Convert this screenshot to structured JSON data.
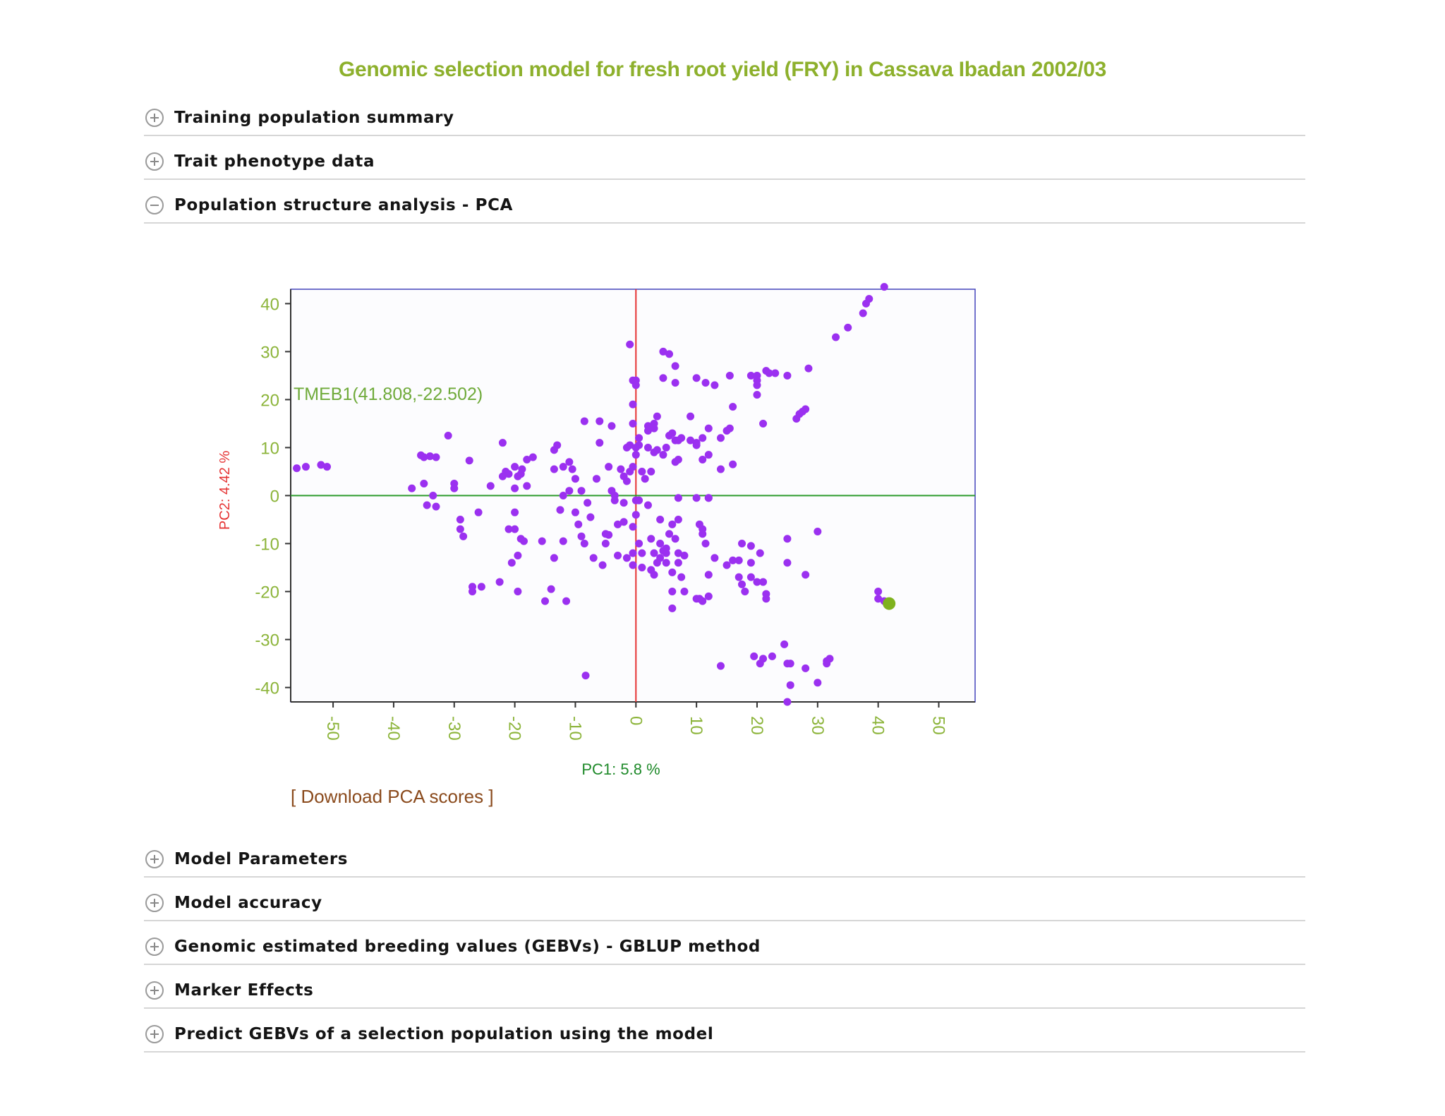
{
  "page": {
    "title": "Genomic selection model for fresh root yield (FRY) in Cassava Ibadan 2002/03"
  },
  "sections_top": [
    {
      "label": "Training population summary",
      "state": "collapsed"
    },
    {
      "label": "Trait phenotype data",
      "state": "collapsed"
    },
    {
      "label": "Population structure analysis - PCA",
      "state": "expanded"
    }
  ],
  "sections_bottom": [
    {
      "label": "Model Parameters",
      "state": "collapsed"
    },
    {
      "label": "Model accuracy",
      "state": "collapsed"
    },
    {
      "label": "Genomic estimated breeding values (GEBVs) - GBLUP method",
      "state": "collapsed"
    },
    {
      "label": "Marker Effects",
      "state": "collapsed"
    },
    {
      "label": "Predict GEBVs of a selection population using the model",
      "state": "collapsed"
    }
  ],
  "download_link": "[ Download PCA scores ]",
  "colors": {
    "title": "#8db02c",
    "point": "#9b30f0",
    "highlight_point": "#7fb21e",
    "zero_x_line": "#e53333",
    "zero_y_line": "#2a9a2a",
    "frame": "#4444bb"
  },
  "chart_data": {
    "type": "scatter",
    "xlabel": "PC1: 5.8 %",
    "ylabel": "PC2: 4.42 %",
    "xlim": [
      -57,
      56
    ],
    "ylim": [
      -43,
      43
    ],
    "xticks": [
      -50,
      -40,
      -30,
      -20,
      -10,
      0,
      10,
      20,
      30,
      40,
      50
    ],
    "yticks": [
      40,
      30,
      20,
      10,
      0,
      -10,
      -20,
      -30,
      -40
    ],
    "highlight": {
      "name": "TMEB1",
      "x": 41.808,
      "y": -22.502,
      "label": "TMEB1(41.808,-22.502)"
    },
    "points": [
      [
        -56,
        5.7
      ],
      [
        -54.5,
        6
      ],
      [
        -52,
        6.4
      ],
      [
        -51,
        6
      ],
      [
        -37,
        1.5
      ],
      [
        -35.5,
        8.4
      ],
      [
        -35,
        8
      ],
      [
        -34,
        8.2
      ],
      [
        -33,
        8
      ],
      [
        -35,
        2.5
      ],
      [
        -34.5,
        -2
      ],
      [
        -33.5,
        0
      ],
      [
        -33,
        -2.3
      ],
      [
        -31,
        12.5
      ],
      [
        -30,
        2.5
      ],
      [
        -30,
        1.5
      ],
      [
        -29,
        -5
      ],
      [
        -29,
        -7
      ],
      [
        -28.5,
        -8.5
      ],
      [
        -27.5,
        7.3
      ],
      [
        -27,
        -19
      ],
      [
        -27,
        -20
      ],
      [
        -26,
        -3.5
      ],
      [
        -25.5,
        -19
      ],
      [
        -24,
        2
      ],
      [
        -22.5,
        -18
      ],
      [
        -22,
        11
      ],
      [
        -22,
        4
      ],
      [
        -21.5,
        5
      ],
      [
        -21,
        -7
      ],
      [
        -21,
        4.5
      ],
      [
        -20.5,
        -14
      ],
      [
        -20,
        1.5
      ],
      [
        -20,
        -3.5
      ],
      [
        -20,
        -7
      ],
      [
        -20,
        6
      ],
      [
        -19.5,
        4
      ],
      [
        -19.5,
        -20
      ],
      [
        -19.5,
        -12.5
      ],
      [
        -19,
        -9
      ],
      [
        -19,
        4.5
      ],
      [
        -18.8,
        5.5
      ],
      [
        -18.5,
        -9.5
      ],
      [
        -18,
        2
      ],
      [
        -18,
        7.5
      ],
      [
        -17,
        8
      ],
      [
        -15.5,
        -9.5
      ],
      [
        -15,
        -22
      ],
      [
        -14,
        -19.5
      ],
      [
        -13.5,
        -13
      ],
      [
        -13.5,
        9.5
      ],
      [
        -13.5,
        5.5
      ],
      [
        -13,
        10.5
      ],
      [
        -12.5,
        -3
      ],
      [
        -12,
        -9.5
      ],
      [
        -12,
        0
      ],
      [
        -12,
        6
      ],
      [
        -11.5,
        -22
      ],
      [
        -11,
        7
      ],
      [
        -11,
        1
      ],
      [
        -10.5,
        5.5
      ],
      [
        -10,
        3.5
      ],
      [
        -10,
        -3.5
      ],
      [
        -9.5,
        -6
      ],
      [
        -9,
        1
      ],
      [
        -9,
        -8.5
      ],
      [
        -8.5,
        -10
      ],
      [
        -8.5,
        15.5
      ],
      [
        -8.3,
        -37.5
      ],
      [
        -8,
        -1.5
      ],
      [
        -7.5,
        -4.5
      ],
      [
        -7,
        -13
      ],
      [
        -6.5,
        3.5
      ],
      [
        -6,
        11
      ],
      [
        -6,
        15.5
      ],
      [
        -5.5,
        -14.5
      ],
      [
        -5,
        -8
      ],
      [
        -5,
        -10
      ],
      [
        -4.5,
        -8.2
      ],
      [
        -4.5,
        6
      ],
      [
        -4,
        14.5
      ],
      [
        -4,
        1
      ],
      [
        -3.5,
        0
      ],
      [
        -3.5,
        -1
      ],
      [
        -3,
        -12.5
      ],
      [
        -3,
        -6
      ],
      [
        -2.5,
        5.5
      ],
      [
        -2,
        -5.5
      ],
      [
        -2,
        4
      ],
      [
        -2,
        -1.5
      ],
      [
        -1.5,
        10
      ],
      [
        -1.5,
        3
      ],
      [
        -1.5,
        -13
      ],
      [
        -1,
        31.5
      ],
      [
        -1,
        10.5
      ],
      [
        -1,
        5
      ],
      [
        -0.5,
        24
      ],
      [
        -0.5,
        19
      ],
      [
        -0.5,
        15
      ],
      [
        -0.5,
        -12
      ],
      [
        -0.5,
        -14.5
      ],
      [
        -0.5,
        -6.5
      ],
      [
        -0.5,
        6
      ],
      [
        0,
        8.5
      ],
      [
        0,
        -4
      ],
      [
        0,
        24
      ],
      [
        0,
        23
      ],
      [
        0,
        10
      ],
      [
        0,
        -1
      ],
      [
        0.5,
        -10
      ],
      [
        0.5,
        10.5
      ],
      [
        0.5,
        12
      ],
      [
        0.5,
        -1
      ],
      [
        1,
        5
      ],
      [
        1,
        -15
      ],
      [
        1,
        -12
      ],
      [
        1.5,
        3.5
      ],
      [
        2,
        -2
      ],
      [
        2,
        13.5
      ],
      [
        2,
        14.5
      ],
      [
        2,
        10
      ],
      [
        2.5,
        -9
      ],
      [
        2.5,
        -15.5
      ],
      [
        2.5,
        5
      ],
      [
        3,
        15
      ],
      [
        3,
        -16.5
      ],
      [
        3,
        14
      ],
      [
        3,
        9
      ],
      [
        3,
        -12
      ],
      [
        3.5,
        16.5
      ],
      [
        3.5,
        -14
      ],
      [
        3.5,
        9.5
      ],
      [
        4,
        -10
      ],
      [
        4,
        -13
      ],
      [
        4,
        -5
      ],
      [
        4.5,
        30
      ],
      [
        4.5,
        24.5
      ],
      [
        4.5,
        -11.5
      ],
      [
        4.5,
        8.5
      ],
      [
        5,
        -11
      ],
      [
        5,
        10
      ],
      [
        5,
        -12
      ],
      [
        5,
        -14
      ],
      [
        5.5,
        29.5
      ],
      [
        5.5,
        12.5
      ],
      [
        5.5,
        -8
      ],
      [
        6,
        -6
      ],
      [
        6,
        -20
      ],
      [
        6,
        -16
      ],
      [
        6,
        13
      ],
      [
        6,
        -23.5
      ],
      [
        6.5,
        -9
      ],
      [
        6.5,
        11.5
      ],
      [
        6.5,
        7
      ],
      [
        6.5,
        27
      ],
      [
        6.5,
        23.5
      ],
      [
        7,
        -5
      ],
      [
        7,
        -12
      ],
      [
        7,
        -0.5
      ],
      [
        7,
        11.5
      ],
      [
        7,
        -14
      ],
      [
        7,
        7.5
      ],
      [
        7.5,
        -17
      ],
      [
        7.5,
        12
      ],
      [
        8,
        -20
      ],
      [
        8,
        -12.5
      ],
      [
        9,
        16.5
      ],
      [
        9,
        11.5
      ],
      [
        10,
        -21.5
      ],
      [
        10,
        10.5
      ],
      [
        10,
        -0.5
      ],
      [
        10,
        24.5
      ],
      [
        10,
        11
      ],
      [
        10.5,
        -21.5
      ],
      [
        10.5,
        -6
      ],
      [
        11,
        -22
      ],
      [
        11,
        12
      ],
      [
        11,
        -7
      ],
      [
        11,
        -8
      ],
      [
        11,
        7.5
      ],
      [
        11.5,
        -10
      ],
      [
        11.5,
        23.5
      ],
      [
        12,
        14
      ],
      [
        12,
        -16.5
      ],
      [
        12,
        8.5
      ],
      [
        12,
        -21
      ],
      [
        12,
        -0.5
      ],
      [
        12,
        -0.5
      ],
      [
        13,
        -13
      ],
      [
        13,
        23
      ],
      [
        14,
        -35.5
      ],
      [
        14,
        5.5
      ],
      [
        14,
        12
      ],
      [
        15,
        -14.5
      ],
      [
        15,
        13.5
      ],
      [
        15.5,
        25
      ],
      [
        15.5,
        14
      ],
      [
        16,
        -13.5
      ],
      [
        16,
        18.5
      ],
      [
        16,
        6.5
      ],
      [
        17,
        -17
      ],
      [
        17,
        -13.5
      ],
      [
        17.5,
        -18.5
      ],
      [
        17.5,
        -10
      ],
      [
        18,
        -20
      ],
      [
        19,
        -14
      ],
      [
        19,
        -17
      ],
      [
        19,
        -10.5
      ],
      [
        19,
        25
      ],
      [
        19.5,
        -33.5
      ],
      [
        20,
        -18
      ],
      [
        20,
        24
      ],
      [
        20,
        23
      ],
      [
        20,
        25
      ],
      [
        20,
        21
      ],
      [
        20.5,
        -12
      ],
      [
        20.5,
        -35
      ],
      [
        21,
        -34
      ],
      [
        21,
        15
      ],
      [
        21,
        -18
      ],
      [
        21.5,
        -20.5
      ],
      [
        21.5,
        -21.5
      ],
      [
        21.5,
        26
      ],
      [
        22,
        25.5
      ],
      [
        22.5,
        -33.5
      ],
      [
        23,
        25.5
      ],
      [
        25,
        -35
      ],
      [
        24.5,
        -31
      ],
      [
        25,
        -9
      ],
      [
        25,
        25
      ],
      [
        25,
        -14
      ],
      [
        25.5,
        -35
      ],
      [
        25.5,
        -39.5
      ],
      [
        25,
        -43
      ],
      [
        26.5,
        16
      ],
      [
        27,
        17
      ],
      [
        27.5,
        17.5
      ],
      [
        28,
        18
      ],
      [
        28,
        -16.5
      ],
      [
        28,
        -36
      ],
      [
        28.5,
        26.5
      ],
      [
        30,
        -7.5
      ],
      [
        30,
        -39
      ],
      [
        31.5,
        -35
      ],
      [
        31.5,
        -34.5
      ],
      [
        32,
        -34
      ],
      [
        33,
        33
      ],
      [
        35,
        35
      ],
      [
        37.5,
        38
      ],
      [
        38,
        40
      ],
      [
        38.5,
        41
      ],
      [
        40,
        -20
      ],
      [
        40,
        -21.5
      ],
      [
        41,
        -22
      ],
      [
        41,
        43.5
      ]
    ]
  }
}
